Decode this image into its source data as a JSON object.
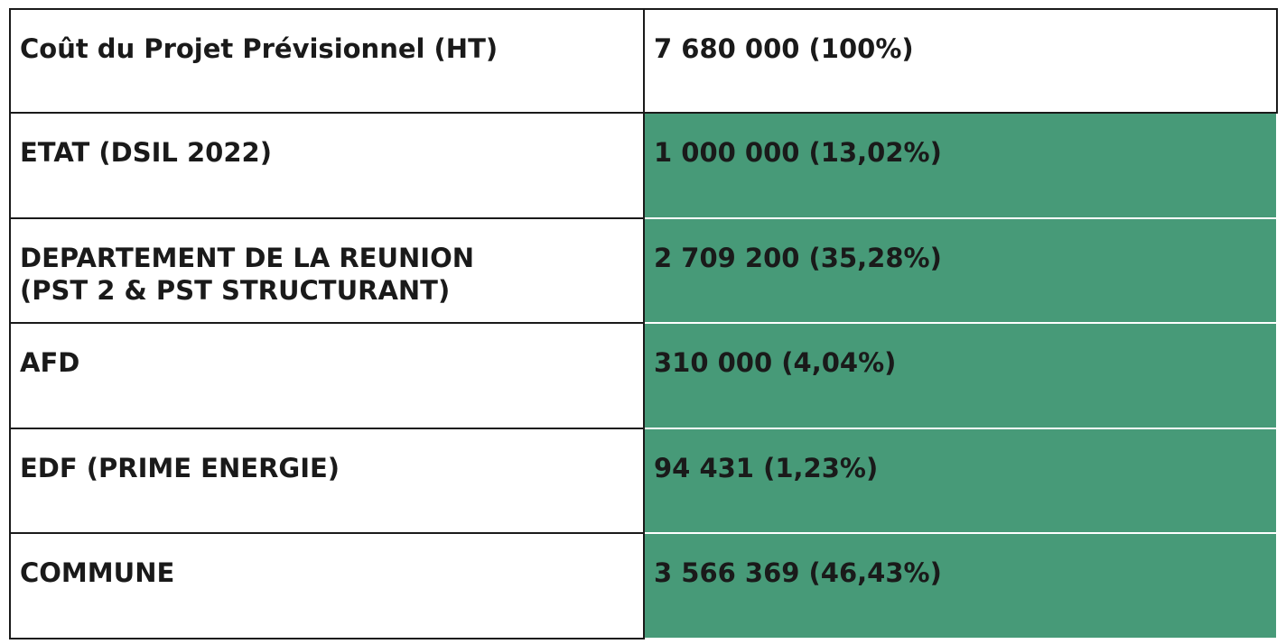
{
  "table": {
    "header": {
      "label": "Coût du Projet Prévisionnel (HT)",
      "value": "7 680 000 (100%)"
    },
    "rows": [
      {
        "label": "ETAT (DSIL 2022)",
        "value": "1 000 000 (13,02%)"
      },
      {
        "label": "DEPARTEMENT DE LA REUNION\n(PST 2 & PST STRUCTURANT)",
        "value": "2 709 200 (35,28%)"
      },
      {
        "label": "AFD",
        "value": "310 000 (4,04%)"
      },
      {
        "label": "EDF (PRIME ENERGIE)",
        "value": "94 431 (1,23%)"
      },
      {
        "label": "COMMUNE",
        "value": "3 566 369 (46,43%)"
      }
    ]
  },
  "colors": {
    "highlight": "#479a78",
    "text": "#1a1a1a",
    "border": "#1a1a1a"
  }
}
